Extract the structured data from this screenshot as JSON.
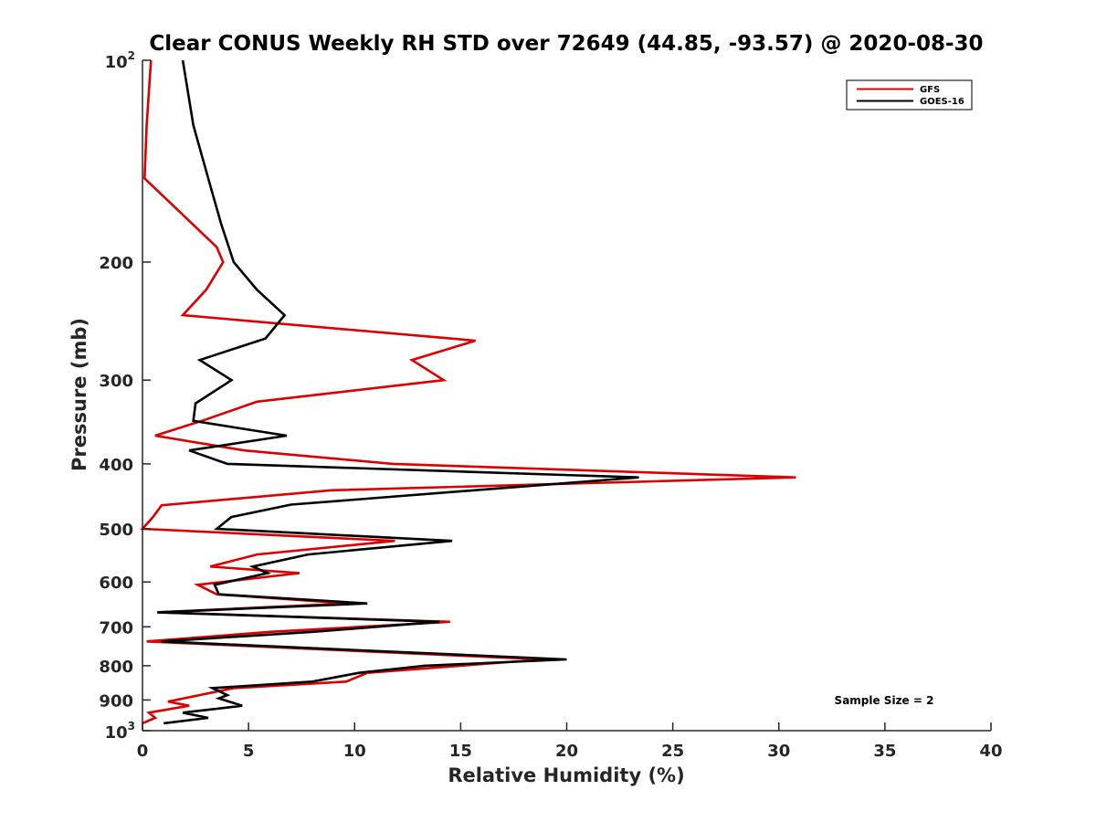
{
  "chart_data": {
    "type": "line",
    "title": "Clear CONUS Weekly RH STD over 72649 (44.85, -93.57) @ 2020-08-30",
    "xlabel": "Relative Humidity (%)",
    "ylabel": "Pressure (mb)",
    "xlim": [
      0,
      40
    ],
    "ylim": [
      100,
      1000
    ],
    "yscale": "log",
    "y_reversed": true,
    "x_ticks": [
      "0",
      "5",
      "10",
      "15",
      "20",
      "25",
      "30",
      "35",
      "40"
    ],
    "y_ticks": [
      {
        "value": 100,
        "base": "10",
        "exp": "2"
      },
      {
        "value": 200,
        "label": "200"
      },
      {
        "value": 300,
        "label": "300"
      },
      {
        "value": 400,
        "label": "400"
      },
      {
        "value": 500,
        "label": "500"
      },
      {
        "value": 600,
        "label": "600"
      },
      {
        "value": 700,
        "label": "700"
      },
      {
        "value": 800,
        "label": "800"
      },
      {
        "value": 900,
        "label": "900"
      },
      {
        "value": 1000,
        "base": "10",
        "exp": "3"
      }
    ],
    "grid": false,
    "legend_position": "top-right",
    "annotation": "Sample Size = 2",
    "series": [
      {
        "name": "GFS",
        "color": "#dd0000",
        "points": [
          [
            0.4,
            100
          ],
          [
            0.2,
            125
          ],
          [
            0.1,
            150
          ],
          [
            3.5,
            190
          ],
          [
            3.8,
            200
          ],
          [
            3.0,
            220
          ],
          [
            1.9,
            240
          ],
          [
            15.7,
            262
          ],
          [
            12.7,
            280
          ],
          [
            14.2,
            300
          ],
          [
            5.4,
            323
          ],
          [
            2.8,
            345
          ],
          [
            0.6,
            363
          ],
          [
            4.8,
            382
          ],
          [
            11.8,
            400
          ],
          [
            30.8,
            419
          ],
          [
            8.9,
            438
          ],
          [
            0.9,
            461
          ],
          [
            0.5,
            480
          ],
          [
            0.0,
            500
          ],
          [
            11.9,
            521
          ],
          [
            5.4,
            546
          ],
          [
            3.2,
            569
          ],
          [
            7.4,
            582
          ],
          [
            2.6,
            606
          ],
          [
            3.5,
            626
          ],
          [
            9.7,
            646
          ],
          [
            0.7,
            666
          ],
          [
            14.5,
            688
          ],
          [
            6.1,
            712
          ],
          [
            0.2,
            736
          ],
          [
            18.9,
            783
          ],
          [
            10.6,
            820
          ],
          [
            9.6,
            845
          ],
          [
            4.3,
            864
          ],
          [
            1.2,
            905
          ],
          [
            2.2,
            918
          ],
          [
            0.3,
            940
          ],
          [
            0.6,
            957
          ],
          [
            0.0,
            975
          ]
        ]
      },
      {
        "name": "GOES-16",
        "color": "#000000",
        "points": [
          [
            1.9,
            100
          ],
          [
            2.4,
            125
          ],
          [
            3.1,
            150
          ],
          [
            3.7,
            175
          ],
          [
            4.3,
            200
          ],
          [
            5.4,
            220
          ],
          [
            6.7,
            240
          ],
          [
            5.8,
            260
          ],
          [
            2.7,
            280
          ],
          [
            4.2,
            300
          ],
          [
            2.5,
            325
          ],
          [
            2.4,
            345
          ],
          [
            6.8,
            363
          ],
          [
            2.2,
            382
          ],
          [
            4.0,
            400
          ],
          [
            23.4,
            419
          ],
          [
            7.0,
            460
          ],
          [
            4.2,
            480
          ],
          [
            3.5,
            500
          ],
          [
            14.6,
            521
          ],
          [
            7.8,
            546
          ],
          [
            5.2,
            569
          ],
          [
            5.9,
            582
          ],
          [
            3.4,
            606
          ],
          [
            3.6,
            626
          ],
          [
            10.6,
            646
          ],
          [
            0.7,
            666
          ],
          [
            14.0,
            688
          ],
          [
            8.1,
            712
          ],
          [
            0.9,
            736
          ],
          [
            20.0,
            783
          ],
          [
            13.3,
            800
          ],
          [
            10.2,
            820
          ],
          [
            8.0,
            845
          ],
          [
            3.3,
            864
          ],
          [
            4.0,
            885
          ],
          [
            3.6,
            895
          ],
          [
            4.7,
            918
          ],
          [
            1.9,
            940
          ],
          [
            3.1,
            957
          ],
          [
            1.0,
            975
          ]
        ]
      }
    ]
  }
}
